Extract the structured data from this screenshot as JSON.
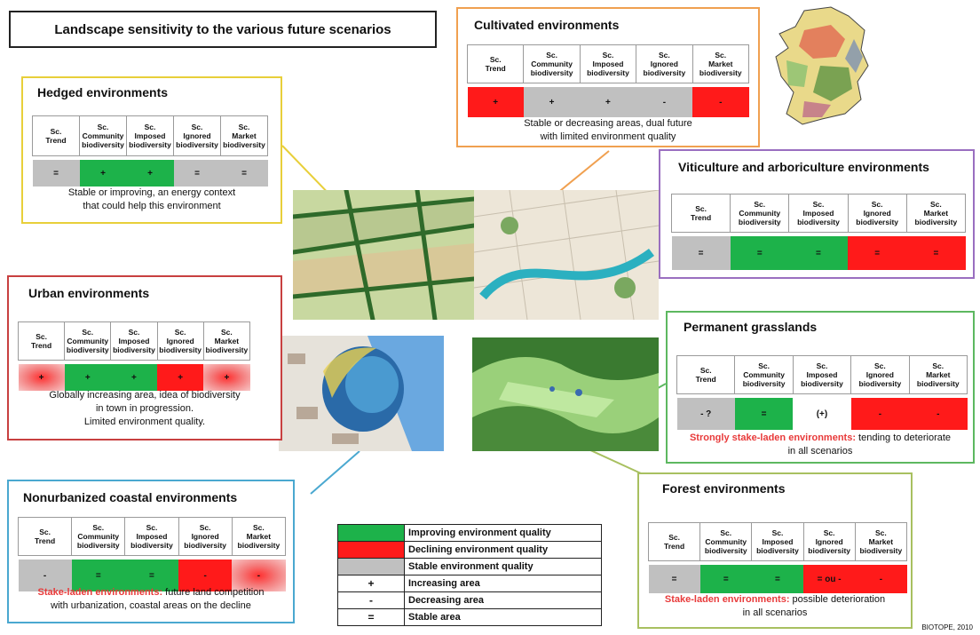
{
  "title": "Landscape sensitivity to the various future scenarios",
  "credit": "BIOTOPE, 2010",
  "colors": {
    "improving": "#1db24a",
    "declining": "#ff1a1a",
    "stable": "#c0c0c0"
  },
  "scenario_headers": [
    "Sc.\nTrend",
    "Sc.\nCommunity\nbiodiversity",
    "Sc.\nImposed\nbiodiversity",
    "Sc.\nIgnored\nbiodiversity",
    "Sc.\nMarket\nbiodiversity"
  ],
  "environments": {
    "hedged": {
      "title": "Hedged environments",
      "values": [
        "=",
        "+",
        "+",
        "=",
        "="
      ],
      "quality": [
        "stable",
        "improving",
        "improving",
        "stable",
        "stable"
      ],
      "highlight": "",
      "note": "Stable or improving, an energy context\nthat could help this environment"
    },
    "cultivated": {
      "title": "Cultivated environments",
      "values": [
        "+",
        "+",
        "+",
        "-",
        "-"
      ],
      "quality": [
        "declining",
        "stable",
        "stable",
        "stable",
        "declining"
      ],
      "highlight": "",
      "note": "Stable or decreasing areas, dual future\nwith limited environment quality"
    },
    "viticulture": {
      "title": "Viticulture and arboriculture environments",
      "values": [
        "=",
        "=",
        "=",
        "=",
        "="
      ],
      "quality": [
        "stable",
        "improving",
        "improving",
        "declining",
        "declining"
      ],
      "highlight": "",
      "note": ""
    },
    "urban": {
      "title": "Urban environments",
      "values": [
        "+",
        "+",
        "+",
        "+",
        "+"
      ],
      "quality": [
        "declining-fade",
        "improving",
        "improving",
        "declining",
        "declining-fade"
      ],
      "highlight": "",
      "note": "Globally increasing area, idea of biodiversity\nin town in progression.\nLimited environment quality."
    },
    "grasslands": {
      "title": "Permanent grasslands",
      "values": [
        "- ?",
        "=",
        "(+)",
        "-",
        "-"
      ],
      "quality": [
        "stable",
        "improving",
        "none",
        "declining",
        "declining"
      ],
      "highlight": "Strongly stake-laden environments:",
      "note": " tending to deteriorate\nin all scenarios"
    },
    "coastal": {
      "title": "Nonurbanized coastal environments",
      "values": [
        "-",
        "=",
        "=",
        "-",
        "-"
      ],
      "quality": [
        "stable",
        "improving",
        "improving",
        "declining",
        "declining-fade"
      ],
      "highlight": "Stake-laden environments:",
      "note": " future land competition\nwith urbanization, coastal areas on the decline"
    },
    "forest": {
      "title": "Forest environments",
      "values": [
        "=",
        "=",
        "=",
        "= ou -",
        "-"
      ],
      "quality": [
        "stable",
        "improving",
        "improving",
        "declining",
        "declining"
      ],
      "highlight": "Stake-laden environments:",
      "note": " possible deterioration\nin all scenarios"
    }
  },
  "legend": [
    {
      "symbol": "",
      "color": "improving",
      "label": "Improving environment quality"
    },
    {
      "symbol": "",
      "color": "declining",
      "label": "Declining environment quality"
    },
    {
      "symbol": "",
      "color": "stable",
      "label": "Stable environment quality"
    },
    {
      "symbol": "+",
      "color": "",
      "label": "Increasing area"
    },
    {
      "symbol": "-",
      "color": "",
      "label": "Decreasing area"
    },
    {
      "symbol": "=",
      "color": "",
      "label": "Stable area"
    }
  ]
}
